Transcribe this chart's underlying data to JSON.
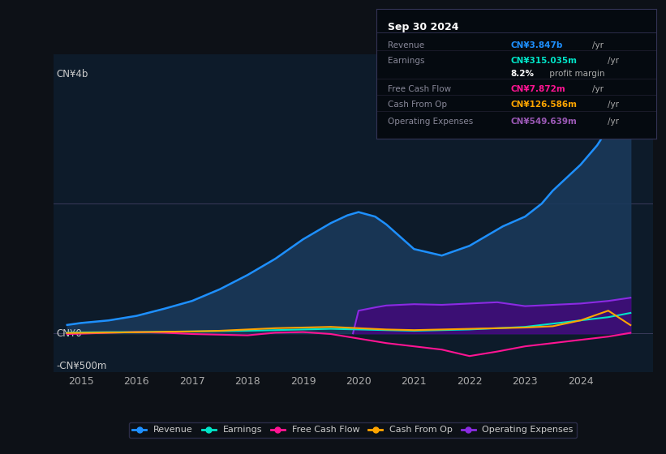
{
  "bg_color": "#0d1117",
  "plot_bg_color": "#0d1b2a",
  "info_box": {
    "title": "Sep 30 2024",
    "rows": [
      {
        "label": "Revenue",
        "value": "CN¥3.847b /yr",
        "value_color": "#1e90ff"
      },
      {
        "label": "Earnings",
        "value": "CN¥315.035m /yr",
        "value_color": "#00e5c8"
      },
      {
        "label": "",
        "value": "8.2% profit margin",
        "value_color": "#ffffff"
      },
      {
        "label": "Free Cash Flow",
        "value": "CN¥7.872m /yr",
        "value_color": "#ff1493"
      },
      {
        "label": "Cash From Op",
        "value": "CN¥126.586m /yr",
        "value_color": "#ffa500"
      },
      {
        "label": "Operating Expenses",
        "value": "CN¥549.639m /yr",
        "value_color": "#9b59b6"
      }
    ]
  },
  "ylabel_top": "CN¥4b",
  "ylabel_zero": "CN¥0",
  "ylabel_bottom": "-CN¥500m",
  "ylim": [
    -600,
    4300
  ],
  "xlim": [
    2014.5,
    2025.3
  ],
  "x_ticks": [
    2015,
    2016,
    2017,
    2018,
    2019,
    2020,
    2021,
    2022,
    2023,
    2024
  ],
  "gridline_y": [
    0,
    2000
  ],
  "revenue": {
    "x": [
      2014.75,
      2015.0,
      2015.5,
      2016.0,
      2016.5,
      2017.0,
      2017.5,
      2018.0,
      2018.5,
      2019.0,
      2019.5,
      2019.8,
      2020.0,
      2020.3,
      2020.5,
      2021.0,
      2021.5,
      2022.0,
      2022.3,
      2022.6,
      2023.0,
      2023.3,
      2023.5,
      2023.75,
      2024.0,
      2024.3,
      2024.6,
      2024.9
    ],
    "y": [
      130,
      160,
      200,
      270,
      380,
      500,
      680,
      900,
      1150,
      1450,
      1700,
      1820,
      1870,
      1800,
      1680,
      1300,
      1200,
      1350,
      1500,
      1650,
      1800,
      2000,
      2200,
      2400,
      2600,
      2900,
      3300,
      3847
    ],
    "color": "#1e90ff",
    "fill_color": "#1a3a5c",
    "fill_alpha": 0.85
  },
  "earnings": {
    "x": [
      2014.75,
      2015.0,
      2015.5,
      2016.0,
      2016.5,
      2017.0,
      2017.5,
      2018.0,
      2018.5,
      2019.0,
      2019.5,
      2020.0,
      2020.5,
      2021.0,
      2021.5,
      2022.0,
      2022.5,
      2023.0,
      2023.5,
      2024.0,
      2024.5,
      2024.9
    ],
    "y": [
      10,
      15,
      20,
      20,
      25,
      30,
      35,
      40,
      50,
      60,
      70,
      60,
      50,
      40,
      50,
      60,
      80,
      100,
      150,
      200,
      250,
      315
    ],
    "color": "#00e5c8"
  },
  "free_cash_flow": {
    "x": [
      2014.75,
      2015.0,
      2015.5,
      2016.0,
      2016.5,
      2017.0,
      2017.5,
      2018.0,
      2018.5,
      2019.0,
      2019.5,
      2020.0,
      2020.5,
      2021.0,
      2021.5,
      2022.0,
      2022.5,
      2023.0,
      2023.5,
      2024.0,
      2024.5,
      2024.9
    ],
    "y": [
      -10,
      -5,
      10,
      20,
      10,
      -10,
      -20,
      -30,
      10,
      20,
      -10,
      -80,
      -150,
      -200,
      -250,
      -350,
      -280,
      -200,
      -150,
      -100,
      -50,
      7.8
    ],
    "color": "#ff1493"
  },
  "cash_from_op": {
    "x": [
      2014.75,
      2015.0,
      2015.5,
      2016.0,
      2016.5,
      2017.0,
      2017.5,
      2018.0,
      2018.5,
      2019.0,
      2019.5,
      2020.0,
      2020.5,
      2021.0,
      2021.5,
      2022.0,
      2022.5,
      2023.0,
      2023.5,
      2024.0,
      2024.5,
      2024.9
    ],
    "y": [
      5,
      8,
      12,
      18,
      25,
      30,
      40,
      60,
      80,
      90,
      100,
      80,
      60,
      50,
      60,
      70,
      80,
      90,
      110,
      200,
      350,
      126.6
    ],
    "color": "#ffa500"
  },
  "operating_expenses": {
    "x": [
      2019.9,
      2020.0,
      2020.3,
      2020.5,
      2021.0,
      2021.5,
      2022.0,
      2022.5,
      2023.0,
      2023.5,
      2024.0,
      2024.5,
      2024.9
    ],
    "y": [
      0,
      350,
      400,
      430,
      450,
      440,
      460,
      480,
      420,
      440,
      460,
      500,
      549.6
    ],
    "color": "#8a2be2",
    "fill_color": "#4b0082",
    "fill_alpha": 0.7
  },
  "legend": [
    {
      "label": "Revenue",
      "color": "#1e90ff"
    },
    {
      "label": "Earnings",
      "color": "#00e5c8"
    },
    {
      "label": "Free Cash Flow",
      "color": "#ff1493"
    },
    {
      "label": "Cash From Op",
      "color": "#ffa500"
    },
    {
      "label": "Operating Expenses",
      "color": "#8a2be2"
    }
  ]
}
